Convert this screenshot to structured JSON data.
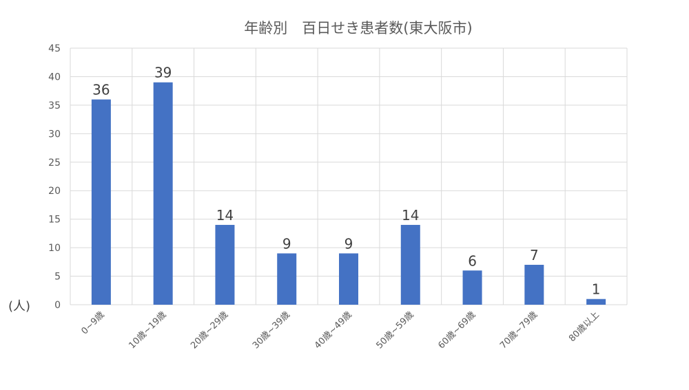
{
  "chart_data": {
    "type": "bar",
    "title": "年齢別　百日せき患者数(東大阪市)",
    "ylabel": "(人)",
    "xlabel": "",
    "categories": [
      "0~9歳",
      "10歳~19歳",
      "20歳~29歳",
      "30歳~39歳",
      "40歳~49歳",
      "50歳~59歳",
      "60歳~69歳",
      "70歳~79歳",
      "80歳以上"
    ],
    "values": [
      36,
      39,
      14,
      9,
      9,
      14,
      6,
      7,
      1
    ],
    "data_labels": [
      "36",
      "39",
      "14",
      "9",
      "9",
      "14",
      "6",
      "7",
      "1"
    ],
    "yticks": [
      "0",
      "5",
      "10",
      "15",
      "20",
      "25",
      "30",
      "35",
      "40",
      "45"
    ],
    "ylim": [
      0,
      45
    ],
    "grid": true,
    "legend": "none",
    "bar_color": "#4472C4",
    "grid_color": "#d9d9d9"
  }
}
